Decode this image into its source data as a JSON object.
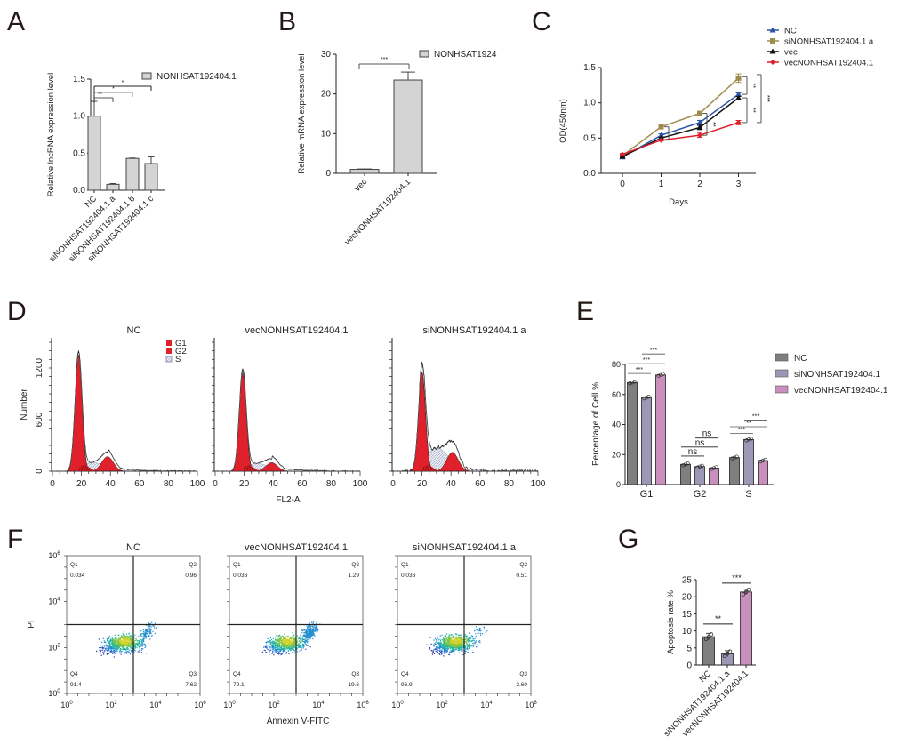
{
  "figure": {
    "panel_letters": [
      "A",
      "B",
      "C",
      "D",
      "E",
      "F",
      "G"
    ]
  },
  "chart_data": [
    {
      "panel": "A",
      "type": "bar",
      "title": "",
      "legend": [
        "NONHSAT192404.1"
      ],
      "legend_position": "top-right",
      "xlabel": "",
      "ylabel": "Relative lncRNA expression level",
      "categories": [
        "NC",
        "siNONHSAT192404.1 a",
        "siNONHSAT192404.1 b",
        "siNONHSAT192404.1 c"
      ],
      "values": [
        1.0,
        0.08,
        0.43,
        0.36
      ],
      "errors": [
        0.2,
        0.01,
        0.005,
        0.09
      ],
      "ylim": [
        0,
        1.5
      ],
      "yticks": [
        "0.0",
        "0.5",
        "1.0",
        "1.5"
      ],
      "yticks_values": [
        0,
        0.5,
        1.0,
        1.5
      ],
      "bar_color": "#d4d4d4",
      "significance": [
        {
          "from": 0,
          "to": 1,
          "label": "**"
        },
        {
          "from": 0,
          "to": 2,
          "label": "*"
        },
        {
          "from": 0,
          "to": 3,
          "label": "*"
        }
      ]
    },
    {
      "panel": "B",
      "type": "bar",
      "title": "",
      "legend": [
        "NONHSAT1924"
      ],
      "legend_position": "top-right",
      "xlabel": "",
      "ylabel": "Relative mRNA expression level",
      "categories": [
        "Vec",
        "vecNONHSAT192404.1"
      ],
      "values": [
        1.0,
        23.5
      ],
      "errors": [
        0.1,
        2.0
      ],
      "ylim": [
        0,
        30
      ],
      "yticks": [
        "0",
        "10",
        "20",
        "30"
      ],
      "yticks_values": [
        0,
        10,
        20,
        30
      ],
      "bar_color": "#d4d4d4",
      "significance": [
        {
          "from": 0,
          "to": 1,
          "label": "***"
        }
      ]
    },
    {
      "panel": "C",
      "type": "line",
      "title": "",
      "xlabel": "Days",
      "ylabel": "OD(450nm)",
      "x": [
        0,
        1,
        2,
        3
      ],
      "xticks": [
        "0",
        "1",
        "2",
        "3"
      ],
      "ylim": [
        0,
        1.5
      ],
      "yticks": [
        "0.0",
        "0.5",
        "1.0",
        "1.5"
      ],
      "yticks_values": [
        0,
        0.5,
        1.0,
        1.5
      ],
      "legend_position": "top-right",
      "series": [
        {
          "name": "NC",
          "values": [
            0.23,
            0.54,
            0.72,
            1.12
          ],
          "errors": [
            0.01,
            0.02,
            0.03,
            0.02
          ],
          "color": "#2a55a8",
          "marker": "triangle"
        },
        {
          "name": "siNONHSAT192404.1 a",
          "values": [
            0.25,
            0.66,
            0.85,
            1.35
          ],
          "errors": [
            0.01,
            0.01,
            0.01,
            0.06
          ],
          "color": "#a08c4c",
          "marker": "square"
        },
        {
          "name": "vec",
          "values": [
            0.24,
            0.5,
            0.65,
            1.07
          ],
          "errors": [
            0.01,
            0.01,
            0.03,
            0.02
          ],
          "color": "#111111",
          "marker": "triangle"
        },
        {
          "name": "vecNONHSAT192404.1",
          "values": [
            0.27,
            0.47,
            0.54,
            0.72
          ],
          "errors": [
            0.01,
            0.01,
            0.03,
            0.03
          ],
          "color": "#e0202a",
          "marker": "diamond"
        }
      ],
      "significance": [
        {
          "day": 1,
          "label": "*"
        },
        {
          "day": 2,
          "label": "**"
        },
        {
          "day": 3,
          "pair": "NC vs siNONHSAT192404.1 a",
          "label": "**"
        },
        {
          "day": 3,
          "pair": "vec vs vecNONHSAT192404.1",
          "label": "**"
        },
        {
          "day": 3,
          "pair": "siNONHSAT192404.1 a vs vecNONHSAT192404.1",
          "label": "***"
        }
      ]
    },
    {
      "panel": "D",
      "type": "area",
      "subtype": "cell-cycle histogram",
      "ylabel": "Number",
      "xlabel": "FL2-A",
      "xlim": [
        0,
        100
      ],
      "xticks": [
        "0",
        "20",
        "40",
        "60",
        "80",
        "100"
      ],
      "ylim": [
        0,
        1500
      ],
      "yticks": [
        "0",
        "600",
        "1200"
      ],
      "legend": [
        {
          "name": "G1",
          "color": "#e0202a"
        },
        {
          "name": "G2",
          "color": "#e0202a"
        },
        {
          "name": "S",
          "color": "#c8cde0"
        }
      ],
      "legend_position": "top-right",
      "plots": [
        {
          "title": "NC",
          "g1_peak": 18,
          "g1_height": 1350,
          "g2_peak": 38,
          "g2_height": 170,
          "s_level": 100,
          "noise": 0.3
        },
        {
          "title": "vecNONHSAT192404.1",
          "g1_peak": 19,
          "g1_height": 1150,
          "g2_peak": 39,
          "g2_height": 100,
          "s_level": 90,
          "noise": 0.3
        },
        {
          "title": "siNONHSAT192404.1 a",
          "g1_peak": 20,
          "g1_height": 1150,
          "g2_peak": 41,
          "g2_height": 220,
          "s_level": 270,
          "noise": 1.0
        }
      ]
    },
    {
      "panel": "E",
      "type": "bar",
      "title": "",
      "xlabel": "",
      "ylabel": "Percentage of Cell %",
      "categories": [
        "G1",
        "G2",
        "S"
      ],
      "ylim": [
        0,
        80
      ],
      "yticks": [
        "0",
        "20",
        "40",
        "60",
        "80"
      ],
      "yticks_values": [
        0,
        20,
        40,
        60,
        80
      ],
      "legend_position": "right",
      "series": [
        {
          "name": "NC",
          "values": [
            68,
            13.5,
            18
          ],
          "color": "#7f7f7f"
        },
        {
          "name": "siNONHSAT192404.1",
          "values": [
            58,
            12,
            30
          ],
          "color": "#9a98b4"
        },
        {
          "name": "vecNONHSAT192404.1",
          "values": [
            73,
            11,
            16
          ],
          "color": "#c98fbd"
        }
      ],
      "significance": [
        {
          "group": "G1",
          "from": 0,
          "to": 1,
          "label": "***"
        },
        {
          "group": "G1",
          "from": 0,
          "to": 2,
          "label": "***"
        },
        {
          "group": "G1",
          "from": 1,
          "to": 2,
          "label": "***"
        },
        {
          "group": "G2",
          "from": 0,
          "to": 1,
          "label": "ns"
        },
        {
          "group": "G2",
          "from": 0,
          "to": 2,
          "label": "ns"
        },
        {
          "group": "G2",
          "from": 1,
          "to": 2,
          "label": "ns"
        },
        {
          "group": "S",
          "from": 0,
          "to": 1,
          "label": "***"
        },
        {
          "group": "S",
          "from": 0,
          "to": 2,
          "label": "**"
        },
        {
          "group": "S",
          "from": 1,
          "to": 2,
          "label": "***"
        }
      ]
    },
    {
      "panel": "F",
      "type": "scatter",
      "subtype": "flow cytometry quadrant plot",
      "xlabel": "Annexin V-FITC",
      "ylabel": "PI",
      "xticks": [
        "10^0",
        "10^2",
        "10^4",
        "10^6"
      ],
      "yticks": [
        "10^0",
        "10^2",
        "10^4",
        "10^6"
      ],
      "plots": [
        {
          "title": "NC",
          "quadrants": {
            "Q1": "0.034",
            "Q2": "0.96",
            "Q3": "7.62",
            "Q4": "91.4"
          }
        },
        {
          "title": "vecNONHSAT192404.1",
          "quadrants": {
            "Q1": "0.036",
            "Q2": "1.29",
            "Q3": "19.6",
            "Q4": "79.1"
          }
        },
        {
          "title": "siNONHSAT192404.1 a",
          "quadrants": {
            "Q1": "0.036",
            "Q2": "0.51",
            "Q3": "2.60",
            "Q4": "96.9"
          }
        }
      ]
    },
    {
      "panel": "G",
      "type": "bar",
      "title": "",
      "xlabel": "",
      "ylabel": "Apoptosis rate %",
      "categories": [
        "NC",
        "siNONHSAT192404.1 a",
        "vecNONHSAT192404.1"
      ],
      "values": [
        8.3,
        3.3,
        21.4
      ],
      "errors": [
        1.0,
        0.9,
        0.8
      ],
      "colors": [
        "#7f7f7f",
        "#9a98b4",
        "#c98fbd"
      ],
      "ylim": [
        0,
        25
      ],
      "yticks": [
        "0",
        "5",
        "10",
        "15",
        "20",
        "25"
      ],
      "yticks_values": [
        0,
        5,
        10,
        15,
        20,
        25
      ],
      "significance": [
        {
          "from": 0,
          "to": 1,
          "label": "**"
        },
        {
          "from": 1,
          "to": 2,
          "label": "***"
        }
      ]
    }
  ]
}
